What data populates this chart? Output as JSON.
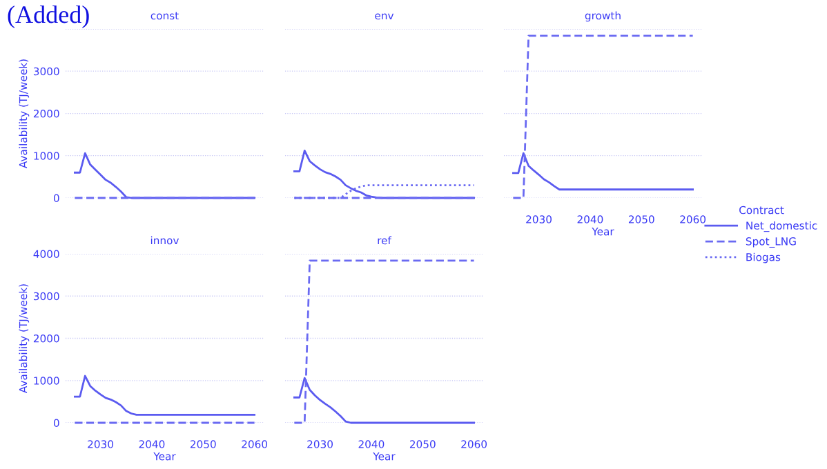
{
  "chart_data": [
    {
      "type": "line",
      "title": "const",
      "ylabel": "Availability (TJ/week)",
      "annotations": [
        "(Added)"
      ],
      "x": [
        2025,
        2026,
        2027,
        2028,
        2029,
        2030,
        2031,
        2032,
        2033,
        2034,
        2035,
        2036,
        2037,
        2038,
        2039,
        2040,
        2041,
        2042,
        2043,
        2044,
        2045,
        2046,
        2047,
        2048,
        2049,
        2050,
        2051,
        2052,
        2053,
        2054,
        2055,
        2056,
        2057,
        2058,
        2059,
        2060
      ],
      "xlim": [
        2023.2,
        2061.8
      ],
      "ylim": [
        0,
        4000
      ],
      "xticks": [
        2030,
        2040,
        2050,
        2060
      ],
      "yticks": [
        0,
        1000,
        2000,
        3000,
        {
          "value": 4000,
          "label": null
        }
      ],
      "tick_labels": "y",
      "grid": "y",
      "series": [
        {
          "color": "#5b5bf0",
          "line_style": "solid",
          "values": [
            600,
            600,
            1060,
            790,
            670,
            550,
            430,
            360,
            260,
            150,
            20,
            0,
            0,
            0,
            0,
            0,
            0,
            0,
            0,
            0,
            0,
            0,
            0,
            0,
            0,
            0,
            0,
            0,
            0,
            0,
            0,
            0,
            0,
            0,
            0,
            0
          ]
        },
        {
          "color": "#6a6af2",
          "line_style": "dashed",
          "values": [
            0,
            0,
            0,
            0,
            0,
            0,
            0,
            0,
            0,
            0,
            0,
            0,
            0,
            0,
            0,
            0,
            0,
            0,
            0,
            0,
            0,
            0,
            0,
            0,
            0,
            0,
            0,
            0,
            0,
            0,
            0,
            0,
            0,
            0,
            0,
            0
          ]
        }
      ]
    },
    {
      "type": "line",
      "title": "env",
      "x": [
        2025,
        2026,
        2027,
        2028,
        2029,
        2030,
        2031,
        2032,
        2033,
        2034,
        2035,
        2036,
        2037,
        2038,
        2039,
        2040,
        2041,
        2042,
        2043,
        2044,
        2045,
        2046,
        2047,
        2048,
        2049,
        2050,
        2051,
        2052,
        2053,
        2054,
        2055,
        2056,
        2057,
        2058,
        2059,
        2060
      ],
      "xlim": [
        2023.2,
        2061.8
      ],
      "ylim": [
        0,
        4000
      ],
      "xticks": [
        2030,
        2040,
        2050,
        2060
      ],
      "yticks": [
        0,
        1000,
        2000,
        3000,
        4000
      ],
      "tick_labels": false,
      "grid": "y",
      "legend": "right",
      "legend_title": "Contract",
      "series": [
        {
          "name": "Net_domestic",
          "color": "#5b5bf0",
          "line_style": "solid",
          "values": [
            630,
            630,
            1120,
            870,
            770,
            680,
            610,
            570,
            510,
            430,
            300,
            230,
            170,
            130,
            60,
            30,
            10,
            0,
            0,
            0,
            0,
            0,
            0,
            0,
            0,
            0,
            0,
            0,
            0,
            0,
            0,
            0,
            0,
            0,
            0,
            0
          ]
        },
        {
          "name": "Spot_LNG",
          "color": "#6a6af2",
          "line_style": "dashed",
          "values": [
            0,
            0,
            0,
            0,
            0,
            0,
            0,
            0,
            0,
            0,
            0,
            0,
            0,
            0,
            0,
            0,
            0,
            0,
            0,
            0,
            0,
            0,
            0,
            0,
            0,
            0,
            0,
            0,
            0,
            0,
            0,
            0,
            0,
            0,
            0,
            0
          ]
        },
        {
          "name": "Biogas",
          "color": "#6a6af2",
          "line_style": "dotted",
          "values": [
            0,
            0,
            0,
            0,
            0,
            0,
            0,
            0,
            0,
            0,
            90,
            170,
            230,
            270,
            300,
            300,
            300,
            300,
            300,
            300,
            300,
            300,
            300,
            300,
            300,
            300,
            300,
            300,
            300,
            300,
            300,
            300,
            300,
            300,
            300,
            300
          ]
        }
      ]
    },
    {
      "type": "line",
      "title": "growth",
      "xlabel": "Year",
      "x": [
        2025,
        2026,
        2027,
        2028,
        2029,
        2030,
        2031,
        2032,
        2033,
        2034,
        2035,
        2036,
        2037,
        2038,
        2039,
        2040,
        2041,
        2042,
        2043,
        2044,
        2045,
        2046,
        2047,
        2048,
        2049,
        2050,
        2051,
        2052,
        2053,
        2054,
        2055,
        2056,
        2057,
        2058,
        2059,
        2060
      ],
      "xlim": [
        2023.2,
        2061.8
      ],
      "ylim": [
        0,
        4000
      ],
      "xticks": [
        2030,
        2040,
        2050,
        2060
      ],
      "yticks": [
        0,
        1000,
        2000,
        3000,
        4000
      ],
      "tick_labels": "x",
      "grid": "y",
      "series": [
        {
          "color": "#5b5bf0",
          "line_style": "solid",
          "values": [
            590,
            590,
            1060,
            760,
            650,
            550,
            440,
            370,
            280,
            200,
            200,
            200,
            200,
            200,
            200,
            200,
            200,
            200,
            200,
            200,
            200,
            200,
            200,
            200,
            200,
            200,
            200,
            200,
            200,
            200,
            200,
            200,
            200,
            200,
            200,
            200
          ]
        },
        {
          "color": "#6a6af2",
          "line_style": "dashed",
          "values": [
            0,
            0,
            0,
            3840,
            3840,
            3840,
            3840,
            3840,
            3840,
            3840,
            3840,
            3840,
            3840,
            3840,
            3840,
            3840,
            3840,
            3840,
            3840,
            3840,
            3840,
            3840,
            3840,
            3840,
            3840,
            3840,
            3840,
            3840,
            3840,
            3840,
            3840,
            3840,
            3840,
            3840,
            3840,
            3840
          ]
        }
      ]
    },
    {
      "type": "line",
      "title": "innov",
      "xlabel": "Year",
      "ylabel": "Availability (TJ/week)",
      "x": [
        2025,
        2026,
        2027,
        2028,
        2029,
        2030,
        2031,
        2032,
        2033,
        2034,
        2035,
        2036,
        2037,
        2038,
        2039,
        2040,
        2041,
        2042,
        2043,
        2044,
        2045,
        2046,
        2047,
        2048,
        2049,
        2050,
        2051,
        2052,
        2053,
        2054,
        2055,
        2056,
        2057,
        2058,
        2059,
        2060
      ],
      "xlim": [
        2023.2,
        2061.8
      ],
      "ylim": [
        0,
        4000
      ],
      "xticks": [
        2030,
        2040,
        2050,
        2060
      ],
      "yticks": [
        0,
        1000,
        2000,
        3000,
        4000
      ],
      "grid": "y",
      "series": [
        {
          "color": "#5b5bf0",
          "line_style": "solid",
          "values": [
            620,
            620,
            1110,
            870,
            760,
            670,
            590,
            550,
            490,
            410,
            280,
            220,
            190,
            190,
            190,
            190,
            190,
            190,
            190,
            190,
            190,
            190,
            190,
            190,
            190,
            190,
            190,
            190,
            190,
            190,
            190,
            190,
            190,
            190,
            190,
            190
          ]
        },
        {
          "color": "#6a6af2",
          "line_style": "dashed",
          "values": [
            0,
            0,
            0,
            0,
            0,
            0,
            0,
            0,
            0,
            0,
            0,
            0,
            0,
            0,
            0,
            0,
            0,
            0,
            0,
            0,
            0,
            0,
            0,
            0,
            0,
            0,
            0,
            0,
            0,
            0,
            0,
            0,
            0,
            0,
            0,
            0
          ]
        }
      ]
    },
    {
      "type": "line",
      "title": "ref",
      "xlabel": "Year",
      "x": [
        2025,
        2026,
        2027,
        2028,
        2029,
        2030,
        2031,
        2032,
        2033,
        2034,
        2035,
        2036,
        2037,
        2038,
        2039,
        2040,
        2041,
        2042,
        2043,
        2044,
        2045,
        2046,
        2047,
        2048,
        2049,
        2050,
        2051,
        2052,
        2053,
        2054,
        2055,
        2056,
        2057,
        2058,
        2059,
        2060
      ],
      "xlim": [
        2023.2,
        2061.8
      ],
      "ylim": [
        0,
        4000
      ],
      "xticks": [
        2030,
        2040,
        2050,
        2060
      ],
      "yticks": [
        0,
        1000,
        2000,
        3000,
        4000
      ],
      "tick_labels": "x",
      "grid": "y",
      "series": [
        {
          "color": "#5b5bf0",
          "line_style": "solid",
          "values": [
            600,
            600,
            1060,
            780,
            650,
            540,
            450,
            370,
            270,
            160,
            30,
            0,
            0,
            0,
            0,
            0,
            0,
            0,
            0,
            0,
            0,
            0,
            0,
            0,
            0,
            0,
            0,
            0,
            0,
            0,
            0,
            0,
            0,
            0,
            0,
            0
          ]
        },
        {
          "color": "#6a6af2",
          "line_style": "dashed",
          "values": [
            0,
            0,
            0,
            3840,
            3840,
            3840,
            3840,
            3840,
            3840,
            3840,
            3840,
            3840,
            3840,
            3840,
            3840,
            3840,
            3840,
            3840,
            3840,
            3840,
            3840,
            3840,
            3840,
            3840,
            3840,
            3840,
            3840,
            3840,
            3840,
            3840,
            3840,
            3840,
            3840,
            3840,
            3840,
            3840
          ]
        }
      ]
    }
  ]
}
